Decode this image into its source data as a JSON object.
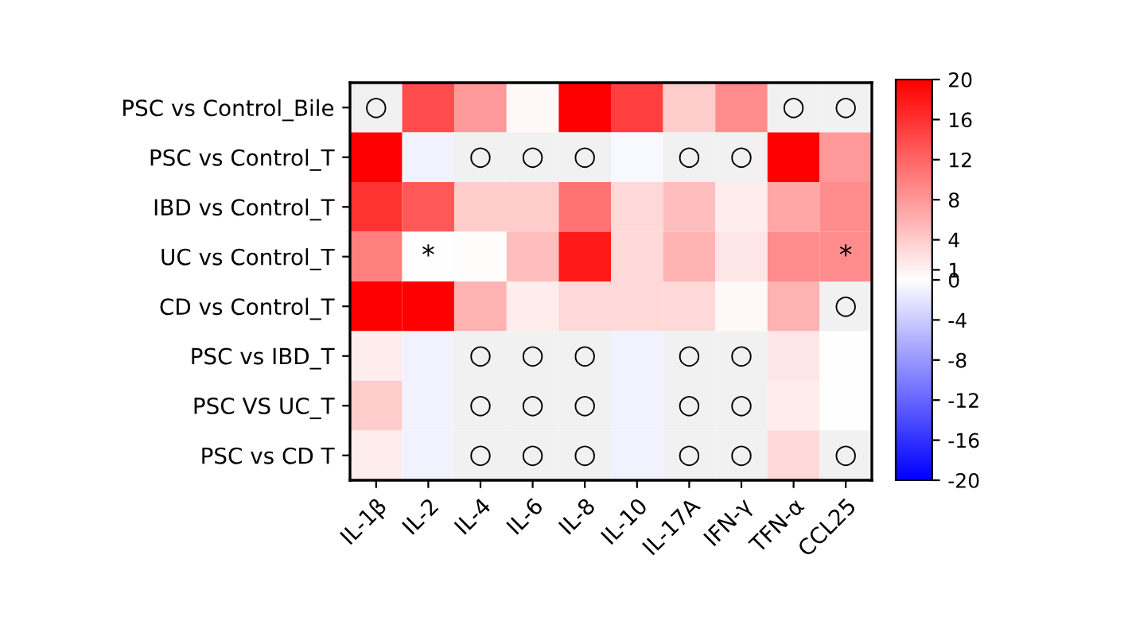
{
  "chart_data": {
    "type": "heatmap",
    "categories": [
      "IL-1β",
      "IL-2",
      "IL-4",
      "IL-6",
      "IL-8",
      "IL-10",
      "IL-17A",
      "IFN-γ",
      "TFN-α",
      "CCL25"
    ],
    "y_categories": [
      "PSC vs Control_Bile",
      "PSC vs Control_T",
      "IBD vs Control_T",
      "UC vs Control_T",
      "CD vs Control_T",
      "PSC vs IBD_T",
      "PSC VS UC_T",
      "PSC vs CD T"
    ],
    "cells": [
      [
        null,
        14,
        8,
        0.5,
        20,
        15,
        4,
        9,
        null,
        null
      ],
      [
        20,
        -1,
        null,
        null,
        null,
        -0.5,
        null,
        null,
        20,
        8
      ],
      [
        16,
        13,
        4,
        4,
        11,
        3,
        5,
        1.5,
        7,
        9
      ],
      [
        10,
        0,
        0.3,
        5,
        18,
        3,
        6,
        2,
        9,
        9
      ],
      [
        20,
        20,
        6,
        1.5,
        3,
        3,
        3,
        0.5,
        6,
        null
      ],
      [
        1.5,
        -1,
        null,
        null,
        null,
        -1,
        null,
        null,
        2,
        0
      ],
      [
        4,
        -1,
        null,
        null,
        null,
        -1,
        null,
        null,
        1.5,
        0
      ],
      [
        1.5,
        -1,
        null,
        null,
        null,
        -1,
        null,
        null,
        3,
        null
      ]
    ],
    "cell_labels": [
      [
        "○",
        null,
        null,
        null,
        null,
        null,
        null,
        null,
        "○",
        "○"
      ],
      [
        null,
        null,
        "○",
        "○",
        "○",
        null,
        "○",
        "○",
        null,
        null
      ],
      [
        null,
        null,
        null,
        null,
        null,
        null,
        null,
        null,
        null,
        null
      ],
      [
        null,
        "*",
        null,
        null,
        null,
        null,
        null,
        null,
        null,
        "*"
      ],
      [
        null,
        null,
        null,
        null,
        null,
        null,
        null,
        null,
        null,
        "○"
      ],
      [
        null,
        null,
        "○",
        "○",
        "○",
        null,
        "○",
        "○",
        null,
        null
      ],
      [
        null,
        null,
        "○",
        "○",
        "○",
        null,
        "○",
        "○",
        null,
        null
      ],
      [
        null,
        null,
        "○",
        "○",
        "○",
        null,
        "○",
        "○",
        null,
        "○"
      ]
    ],
    "clim": [
      -20,
      20
    ],
    "cticks": [
      -20,
      -16,
      -12,
      -8,
      -4,
      0,
      1,
      4,
      8,
      12,
      16,
      20
    ]
  }
}
